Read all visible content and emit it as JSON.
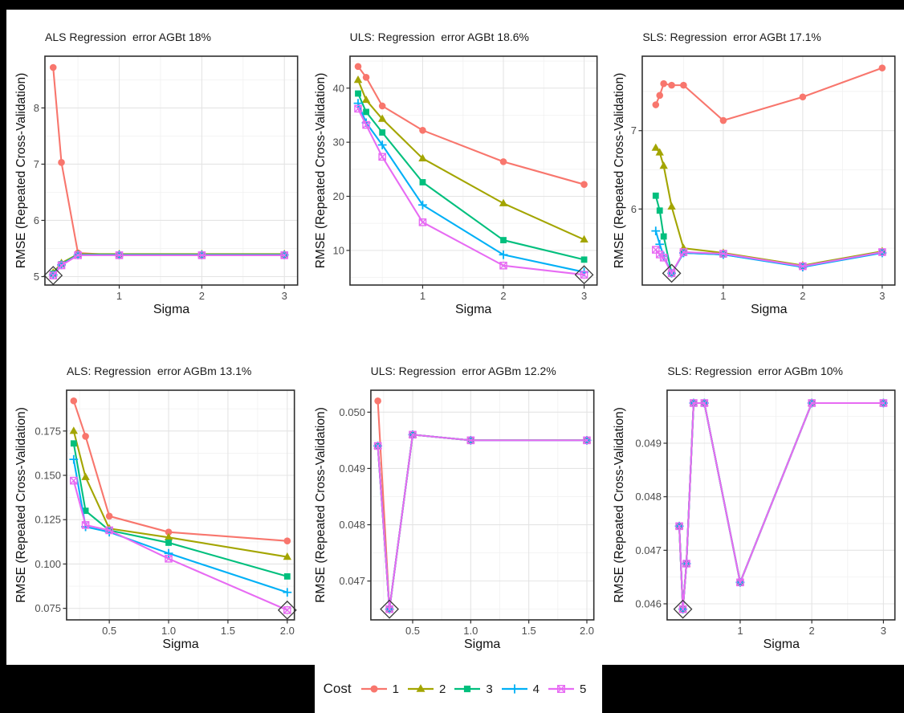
{
  "figure": {
    "background": "#000000",
    "panel_bg": "#ffffff",
    "grid_major": "#e4e4e4",
    "grid_minor": "#f2f2f2",
    "border_color": "#2e2e2e",
    "tick_label_color": "#4d4d4d",
    "best_marker_color": "#3a3a3a"
  },
  "legend": {
    "title": "Cost",
    "position": "bottom",
    "items": [
      {
        "label": "1",
        "color": "#F8766D",
        "shape": "circle"
      },
      {
        "label": "2",
        "color": "#A3A500",
        "shape": "triangle"
      },
      {
        "label": "3",
        "color": "#00BF7D",
        "shape": "square"
      },
      {
        "label": "4",
        "color": "#00B0F6",
        "shape": "plus"
      },
      {
        "label": "5",
        "color": "#E76BF3",
        "shape": "square-x"
      }
    ]
  },
  "chart_data": [
    {
      "type": "line",
      "title": "ALS Regression  error AGBt 18%",
      "xlabel": "Sigma",
      "ylabel": "RMSE (Repeated Cross-Validation)",
      "x": [
        0.2,
        0.3,
        0.5,
        1,
        2,
        3
      ],
      "xlim": [
        0.1,
        3.16
      ],
      "ylim": [
        4.85,
        8.92
      ],
      "xticks": [
        1,
        2,
        3
      ],
      "xtick_labels": [
        "1",
        "2",
        "3"
      ],
      "yticks": [
        5,
        6,
        7,
        8
      ],
      "ytick_labels": [
        "5",
        "6",
        "7",
        "8"
      ],
      "xminor": [
        0.5,
        1.5,
        2.5
      ],
      "yminor": [
        5.5,
        6.5,
        7.5,
        8.5
      ],
      "grid": true,
      "series": [
        {
          "name": "1",
          "values": [
            8.72,
            7.03,
            5.42,
            5.38,
            5.38,
            5.38
          ]
        },
        {
          "name": "2",
          "values": [
            5.07,
            5.24,
            5.4,
            5.4,
            5.4,
            5.4
          ]
        },
        {
          "name": "3",
          "values": [
            5.05,
            5.22,
            5.39,
            5.39,
            5.39,
            5.39
          ]
        },
        {
          "name": "4",
          "values": [
            5.03,
            5.21,
            5.385,
            5.385,
            5.385,
            5.385
          ]
        },
        {
          "name": "5",
          "values": [
            5.02,
            5.2,
            5.38,
            5.38,
            5.38,
            5.38
          ]
        }
      ],
      "best_point": [
        0.2,
        5.02
      ],
      "layout": {
        "l": 48,
        "t": 58,
        "r": 10,
        "b": 65,
        "title_top": 26
      }
    },
    {
      "type": "line",
      "title": "ULS: Regression  error AGBt 18.6%",
      "xlabel": "Sigma",
      "ylabel": "RMSE (Repeated Cross-Validation)",
      "x": [
        0.2,
        0.3,
        0.5,
        1,
        2,
        3
      ],
      "xlim": [
        0.1,
        3.16
      ],
      "ylim": [
        3.6,
        45.9
      ],
      "xticks": [
        1,
        2,
        3
      ],
      "xtick_labels": [
        "1",
        "2",
        "3"
      ],
      "yticks": [
        10,
        20,
        30,
        40
      ],
      "ytick_labels": [
        "10",
        "20",
        "30",
        "40"
      ],
      "xminor": [
        0.5,
        1.5,
        2.5
      ],
      "yminor": [
        5,
        15,
        25,
        35,
        45
      ],
      "grid": true,
      "series": [
        {
          "name": "1",
          "values": [
            44.0,
            42.0,
            36.7,
            32.2,
            26.4,
            22.2
          ]
        },
        {
          "name": "2",
          "values": [
            41.5,
            37.8,
            34.3,
            27.0,
            18.7,
            12.0
          ]
        },
        {
          "name": "3",
          "values": [
            39.0,
            35.6,
            31.8,
            22.6,
            11.9,
            8.3
          ]
        },
        {
          "name": "4",
          "values": [
            37.2,
            33.6,
            29.5,
            18.4,
            9.2,
            6.0
          ]
        },
        {
          "name": "5",
          "values": [
            36.2,
            33.2,
            27.3,
            15.2,
            7.2,
            5.5
          ]
        }
      ],
      "best_point": [
        3,
        5.5
      ],
      "layout": {
        "l": 55,
        "t": 58,
        "r": 10,
        "b": 65,
        "title_top": 26
      }
    },
    {
      "type": "line",
      "title": "SLS: Regression  error AGBt 17.1%",
      "xlabel": "Sigma",
      "ylabel": "RMSE (Repeated Cross-Validation)",
      "x": [
        0.15,
        0.2,
        0.25,
        0.35,
        0.5,
        1,
        2,
        3
      ],
      "xlim": [
        -0.02,
        3.16
      ],
      "ylim": [
        5.03,
        7.95
      ],
      "xticks": [
        1,
        2,
        3
      ],
      "xtick_labels": [
        "1",
        "2",
        "3"
      ],
      "yticks": [
        6,
        7
      ],
      "ytick_labels": [
        "6",
        "7"
      ],
      "xminor": [
        0.5,
        1.5,
        2.5
      ],
      "yminor": [
        5.5,
        6.5,
        7.5
      ],
      "grid": true,
      "series": [
        {
          "name": "1",
          "values": [
            7.33,
            7.45,
            7.6,
            7.58,
            7.58,
            7.13,
            7.43,
            7.8
          ]
        },
        {
          "name": "2",
          "values": [
            6.78,
            6.72,
            6.55,
            6.03,
            5.5,
            5.44,
            5.28,
            5.46
          ]
        },
        {
          "name": "3",
          "values": [
            6.17,
            5.98,
            5.65,
            5.18,
            5.44,
            5.42,
            5.27,
            5.45
          ]
        },
        {
          "name": "4",
          "values": [
            5.72,
            5.55,
            5.4,
            5.18,
            5.44,
            5.42,
            5.26,
            5.44
          ]
        },
        {
          "name": "5",
          "values": [
            5.48,
            5.42,
            5.38,
            5.18,
            5.45,
            5.43,
            5.27,
            5.45
          ]
        }
      ],
      "best_point": [
        0.35,
        5.18
      ],
      "layout": {
        "l": 47,
        "t": 58,
        "r": 11,
        "b": 65,
        "title_top": 26
      }
    },
    {
      "type": "line",
      "title": "ALS: Regression  error AGBm 13.1%",
      "xlabel": "Sigma",
      "ylabel": "RMSE (Repeated Cross-Validation)",
      "x": [
        0.2,
        0.3,
        0.5,
        1,
        2
      ],
      "xlim": [
        0.14,
        2.06
      ],
      "ylim": [
        0.0685,
        0.198
      ],
      "xticks": [
        0.5,
        1.0,
        1.5,
        2.0
      ],
      "xtick_labels": [
        "0.5",
        "1.0",
        "1.5",
        "2.0"
      ],
      "yticks": [
        0.075,
        0.1,
        0.125,
        0.15,
        0.175
      ],
      "ytick_labels": [
        "0.075",
        "0.100",
        "0.125",
        "0.150",
        "0.175"
      ],
      "xminor": [
        0.25,
        0.75,
        1.25,
        1.75
      ],
      "yminor": [
        0.0875,
        0.1125,
        0.1375,
        0.1625,
        0.1875
      ],
      "grid": true,
      "series": [
        {
          "name": "1",
          "values": [
            0.192,
            0.172,
            0.127,
            0.118,
            0.113
          ]
        },
        {
          "name": "2",
          "values": [
            0.175,
            0.149,
            0.12,
            0.115,
            0.104
          ]
        },
        {
          "name": "3",
          "values": [
            0.168,
            0.13,
            0.119,
            0.112,
            0.093
          ]
        },
        {
          "name": "4",
          "values": [
            0.159,
            0.121,
            0.118,
            0.106,
            0.084
          ]
        },
        {
          "name": "5",
          "values": [
            0.147,
            0.122,
            0.119,
            0.103,
            0.074
          ]
        }
      ],
      "best_point": [
        2,
        0.074
      ],
      "layout": {
        "l": 75,
        "t": 66,
        "r": 14,
        "b": 56,
        "title_top": 34
      }
    },
    {
      "type": "line",
      "title": "ULS: Regression  error AGBm 12.2%",
      "xlabel": "Sigma",
      "ylabel": "RMSE (Repeated Cross-Validation)",
      "x": [
        0.2,
        0.3,
        0.5,
        1,
        2
      ],
      "xlim": [
        0.14,
        2.06
      ],
      "ylim": [
        0.04631,
        0.05039
      ],
      "xticks": [
        0.5,
        1.0,
        1.5,
        2.0
      ],
      "xtick_labels": [
        "0.5",
        "1.0",
        "1.5",
        "2.0"
      ],
      "yticks": [
        0.047,
        0.048,
        0.049,
        0.05
      ],
      "ytick_labels": [
        "0.047",
        "0.048",
        "0.049",
        "0.050"
      ],
      "xminor": [
        0.25,
        0.75,
        1.25,
        1.75
      ],
      "yminor": [
        0.0465,
        0.0475,
        0.0485,
        0.0495
      ],
      "grid": true,
      "series": [
        {
          "name": "1",
          "values": [
            0.0502,
            0.0465,
            0.0496,
            0.0495,
            0.0495
          ]
        },
        {
          "name": "2",
          "values": [
            0.0494,
            0.0465,
            0.0496,
            0.0495,
            0.0495
          ]
        },
        {
          "name": "3",
          "values": [
            0.0494,
            0.0465,
            0.0496,
            0.0495,
            0.0495
          ]
        },
        {
          "name": "4",
          "values": [
            0.0494,
            0.0465,
            0.0496,
            0.0495,
            0.0495
          ]
        },
        {
          "name": "5",
          "values": [
            0.0494,
            0.0465,
            0.0496,
            0.0495,
            0.0495
          ]
        }
      ],
      "best_point": [
        0.3,
        0.0465
      ],
      "layout": {
        "l": 81,
        "t": 66,
        "r": 14,
        "b": 56,
        "title_top": 34
      }
    },
    {
      "type": "line",
      "title": "SLS: Regression  error AGBm 10%",
      "xlabel": "Sigma",
      "ylabel": "RMSE (Repeated Cross-Validation)",
      "x": [
        0.15,
        0.2,
        0.25,
        0.35,
        0.5,
        1,
        2,
        3
      ],
      "xlim": [
        -0.02,
        3.16
      ],
      "ylim": [
        0.0457,
        0.04999
      ],
      "xticks": [
        1,
        2,
        3
      ],
      "xtick_labels": [
        "1",
        "2",
        "3"
      ],
      "yticks": [
        0.046,
        0.047,
        0.048,
        0.049
      ],
      "ytick_labels": [
        "0.046",
        "0.047",
        "0.048",
        "0.049"
      ],
      "xminor": [
        0.5,
        1.5,
        2.5
      ],
      "yminor": [
        0.0465,
        0.0475,
        0.0485,
        0.0495
      ],
      "grid": true,
      "series": [
        {
          "name": "1",
          "values": [
            0.04745,
            0.0459,
            0.04675,
            0.04975,
            0.04975,
            0.0464,
            0.04975,
            0.04975
          ]
        },
        {
          "name": "2",
          "values": [
            0.04745,
            0.0459,
            0.04675,
            0.04975,
            0.04975,
            0.0464,
            0.04975,
            0.04975
          ]
        },
        {
          "name": "3",
          "values": [
            0.04745,
            0.0459,
            0.04675,
            0.04975,
            0.04975,
            0.0464,
            0.04975,
            0.04975
          ]
        },
        {
          "name": "4",
          "values": [
            0.04745,
            0.0459,
            0.04675,
            0.04975,
            0.04975,
            0.0464,
            0.04975,
            0.04975
          ]
        },
        {
          "name": "5",
          "values": [
            0.04745,
            0.0459,
            0.04675,
            0.04975,
            0.04975,
            0.0464,
            0.04975,
            0.04975
          ]
        }
      ],
      "best_point": [
        0.2,
        0.0459
      ],
      "layout": {
        "l": 78,
        "t": 66,
        "r": 11,
        "b": 56,
        "title_top": 34
      }
    }
  ]
}
